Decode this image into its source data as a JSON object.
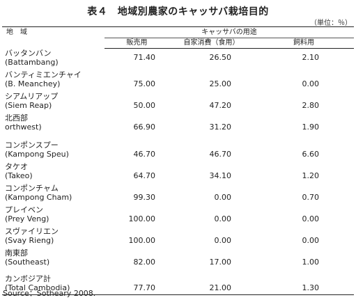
{
  "title": "表４　地域別農家のキャッサバ栽培目的",
  "unit": "（単位：％）",
  "table": {
    "region_header": "地　域",
    "group_header": "キャッサバの用途",
    "col_headers": [
      "販売用",
      "自家消費（食用）",
      "飼料用"
    ],
    "rows": [
      {
        "jp": "バッタンバン",
        "en": "(Battambang)",
        "values": [
          "71.40",
          "26.50",
          "2.10"
        ]
      },
      {
        "jp": "バンティミエンチャイ",
        "en": "(B. Meanchey)",
        "values": [
          "75.00",
          "25.00",
          "0.00"
        ]
      },
      {
        "jp": "シアムリアップ",
        "en": "(Siem Reap)",
        "values": [
          "50.00",
          "47.20",
          "2.80"
        ]
      },
      {
        "jp": "北西部",
        "en": "orthwest)",
        "values": [
          "66.90",
          "31.20",
          "1.90"
        ]
      },
      {
        "jp": "コンポンスプー",
        "en": "(Kampong Speu)",
        "values": [
          "46.70",
          "46.70",
          "6.60"
        ]
      },
      {
        "jp": "タケオ",
        "en": "(Takeo)",
        "values": [
          "64.70",
          "34.10",
          "1.20"
        ]
      },
      {
        "jp": "コンポンチャム",
        "en": "(Kampong Cham)",
        "values": [
          "99.30",
          "0.00",
          "0.70"
        ]
      },
      {
        "jp": "プレイベン",
        "en": "(Prey Veng)",
        "values": [
          "100.00",
          "0.00",
          "0.00"
        ]
      },
      {
        "jp": "スヴァイリエン",
        "en": "(Svay Rieng)",
        "values": [
          "100.00",
          "0.00",
          "0.00"
        ]
      },
      {
        "jp": "南東部",
        "en": "(Southeast)",
        "values": [
          "82.00",
          "17.00",
          "1.00"
        ]
      },
      {
        "jp": "カンボジア計",
        "en": "(Total Cambodia)",
        "values": [
          "77.70",
          "21.00",
          "1.30"
        ]
      }
    ]
  },
  "source": "Source：Sotheary 2008."
}
